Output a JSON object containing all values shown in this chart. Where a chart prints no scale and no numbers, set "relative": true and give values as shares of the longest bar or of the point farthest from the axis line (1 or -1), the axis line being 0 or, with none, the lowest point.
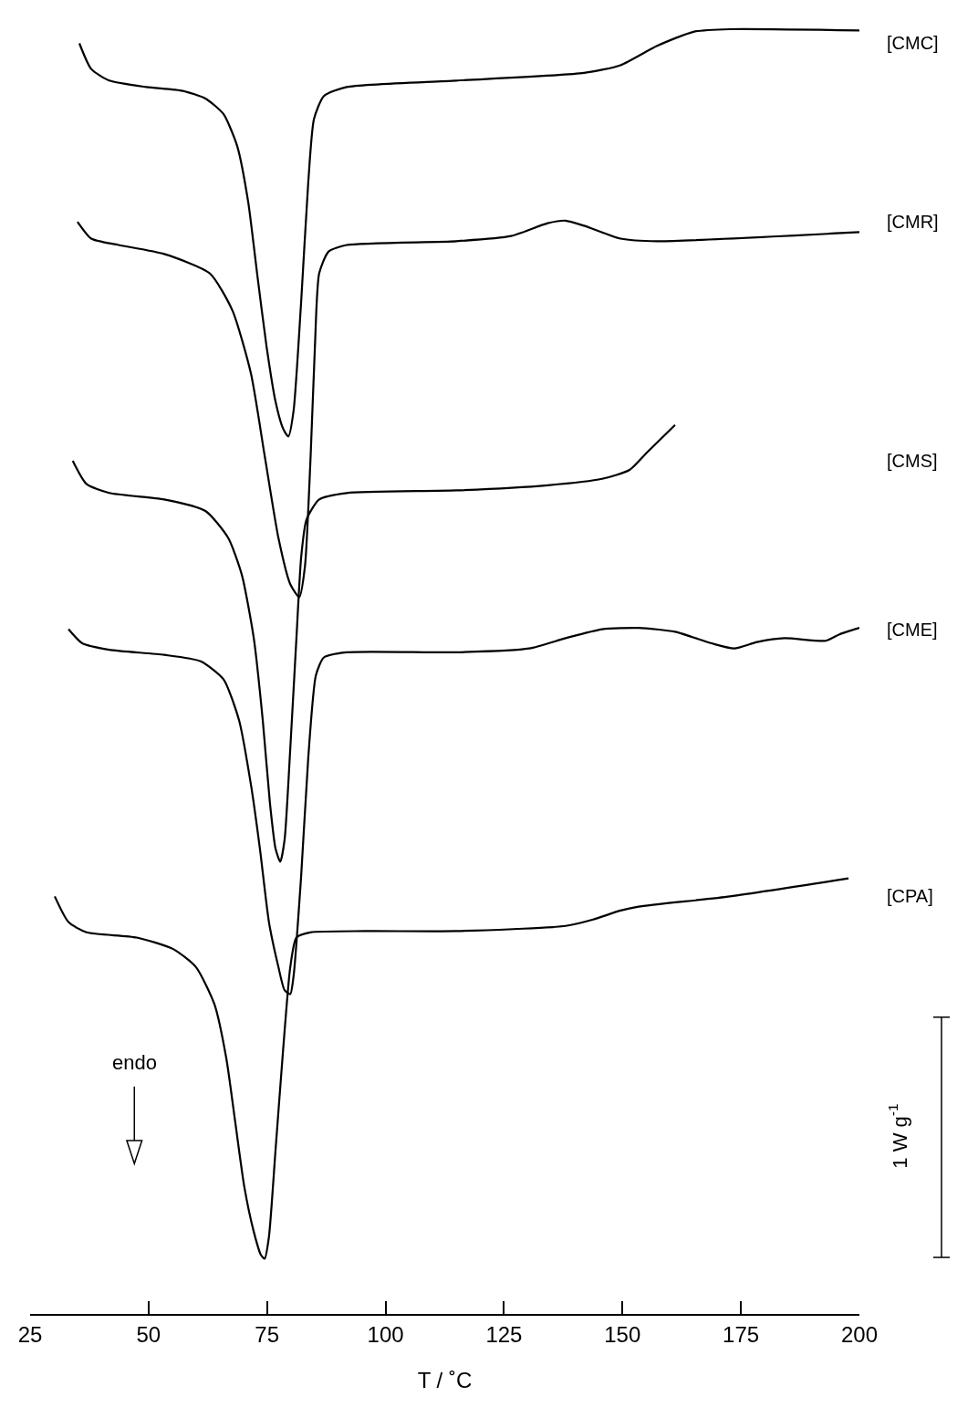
{
  "chart_data": {
    "type": "line",
    "relative": true,
    "xlabel": "T / ˚C",
    "xlim": [
      25,
      200
    ],
    "xticks": [
      25,
      50,
      75,
      100,
      125,
      150,
      175,
      200
    ],
    "annotations": [
      "endo",
      "1 W g$^{-1}$"
    ],
    "legend": false,
    "marker": "none",
    "line_style": "solid",
    "series": [
      {
        "name": "[CMC]",
        "color": "#000000",
        "x": [
          35.4,
          37.9,
          41.7,
          49.5,
          57.2,
          62.0,
          65.8,
          68.7,
          71.0,
          72.9,
          74.9,
          76.8,
          78.4,
          79.5,
          80.6,
          82.2,
          83.7,
          84.9,
          87.0,
          91.8,
          114.9,
          141.9,
          149.6,
          157.3,
          165.0,
          172.7,
          200
        ],
        "values": [
          0.989,
          0.969,
          0.96,
          0.955,
          0.952,
          0.946,
          0.934,
          0.909,
          0.866,
          0.81,
          0.753,
          0.71,
          0.689,
          0.683,
          0.703,
          0.788,
          0.881,
          0.93,
          0.948,
          0.955,
          0.96,
          0.966,
          0.972,
          0.987,
          0.998,
          1.0,
          0.999
        ]
      },
      {
        "name": "[CMR]",
        "color": "#000000",
        "x": [
          35.0,
          37.9,
          43.7,
          53.3,
          62.9,
          67.7,
          71.6,
          74.5,
          77.4,
          79.9,
          81.8,
          83.0,
          84.2,
          85.1,
          86.0,
          88.0,
          91.8,
          114.9,
          126.5,
          134.2,
          138.0,
          141.9,
          149.6,
          157.3,
          200
        ],
        "values": [
          0.85,
          0.837,
          0.832,
          0.825,
          0.81,
          0.781,
          0.732,
          0.668,
          0.604,
          0.568,
          0.558,
          0.582,
          0.668,
          0.753,
          0.81,
          0.827,
          0.832,
          0.835,
          0.839,
          0.849,
          0.851,
          0.847,
          0.837,
          0.835,
          0.842
        ]
      },
      {
        "name": "[CMS]",
        "color": "#000000",
        "x": [
          34.0,
          36.9,
          41.7,
          53.3,
          62.0,
          66.8,
          69.7,
          72.2,
          74.1,
          75.6,
          76.8,
          77.8,
          78.7,
          79.9,
          81.2,
          82.2,
          83.3,
          86.0,
          91.8,
          114.9,
          134.2,
          145.7,
          151.5,
          155.3,
          161.1
        ],
        "values": [
          0.664,
          0.646,
          0.639,
          0.634,
          0.625,
          0.604,
          0.575,
          0.526,
          0.462,
          0.398,
          0.362,
          0.352,
          0.369,
          0.44,
          0.526,
          0.589,
          0.618,
          0.634,
          0.639,
          0.641,
          0.645,
          0.65,
          0.657,
          0.671,
          0.692
        ]
      },
      {
        "name": "[CME]",
        "color": "#000000",
        "x": [
          33.1,
          36.0,
          41.7,
          53.3,
          61.0,
          65.8,
          69.1,
          71.6,
          73.5,
          75.4,
          77.4,
          78.7,
          79.9,
          80.6,
          82.2,
          83.7,
          85.3,
          87.0,
          91.8,
          114.9,
          130.3,
          138.0,
          145.7,
          153.4,
          161.1,
          168.8,
          173.6,
          178.4,
          184.2,
          192.9,
          195.8,
          200
        ],
        "values": [
          0.533,
          0.522,
          0.517,
          0.513,
          0.508,
          0.494,
          0.462,
          0.412,
          0.362,
          0.305,
          0.27,
          0.252,
          0.249,
          0.263,
          0.341,
          0.433,
          0.497,
          0.511,
          0.515,
          0.515,
          0.518,
          0.526,
          0.533,
          0.534,
          0.531,
          0.522,
          0.518,
          0.523,
          0.526,
          0.524,
          0.529,
          0.534
        ]
      },
      {
        "name": "[CPA]",
        "color": "#000000",
        "x": [
          30.2,
          33.1,
          36.9,
          47.5,
          55.2,
          60.0,
          63.9,
          66.4,
          68.3,
          70.2,
          72.2,
          73.7,
          74.5,
          75.4,
          76.8,
          78.4,
          79.9,
          81.2,
          84.1,
          95.7,
          114.9,
          138.0,
          143.8,
          149.6,
          153.4,
          172.7,
          197.7
        ],
        "values": [
          0.325,
          0.305,
          0.297,
          0.293,
          0.284,
          0.27,
          0.241,
          0.199,
          0.149,
          0.099,
          0.064,
          0.046,
          0.043,
          0.06,
          0.128,
          0.206,
          0.27,
          0.293,
          0.297,
          0.298,
          0.298,
          0.302,
          0.307,
          0.314,
          0.317,
          0.325,
          0.339
        ]
      }
    ]
  }
}
